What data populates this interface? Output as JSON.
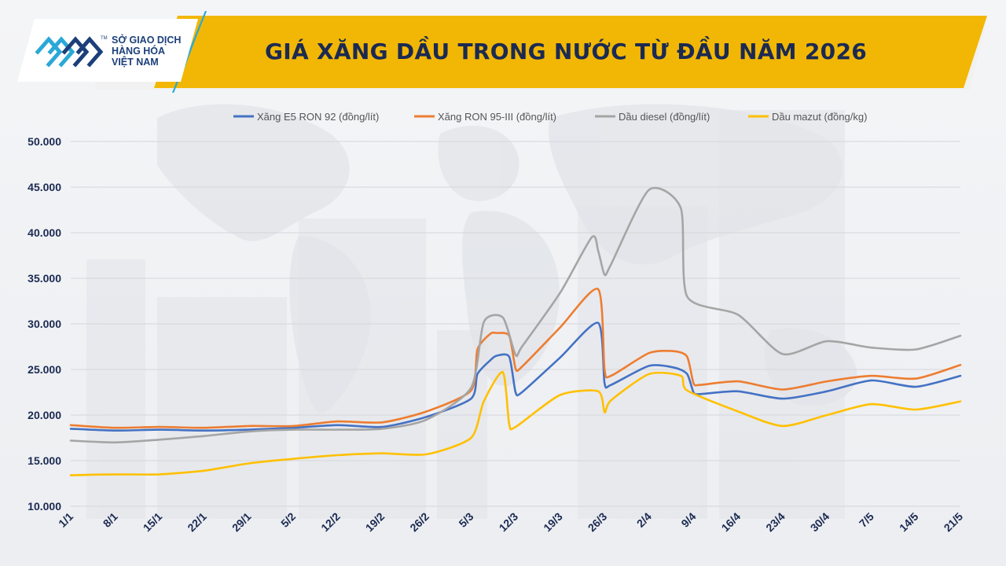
{
  "logo": {
    "line1": "SỞ GIAO DỊCH",
    "line2": "HÀNG HÓA",
    "line3": "VIỆT NAM",
    "tm": "TM"
  },
  "colors": {
    "banner": "#f2b705",
    "title": "#1b2a52",
    "axis_text": "#1b2a52",
    "logo_blue": "#1c3f7a",
    "logo_cyan": "#2aa8d8"
  },
  "chart_data": {
    "type": "line",
    "title": "GIÁ XĂNG DẦU TRONG NƯỚC TỪ ĐẦU NĂM 2026",
    "xlabel": "",
    "ylabel": "",
    "ylim": [
      10000,
      50000
    ],
    "yticks": [
      10000,
      15000,
      20000,
      25000,
      30000,
      35000,
      40000,
      45000,
      50000
    ],
    "ytick_labels": [
      "10.000",
      "15.000",
      "20.000",
      "25.000",
      "30.000",
      "35.000",
      "40.000",
      "45.000",
      "50.000"
    ],
    "x_day_range": [
      1,
      141
    ],
    "xticks": [
      1,
      8,
      15,
      22,
      29,
      36,
      43,
      50,
      57,
      64,
      71,
      78,
      85,
      92,
      99,
      106,
      113,
      120,
      127,
      134,
      141
    ],
    "xtick_labels": [
      "1/1",
      "8/1",
      "15/1",
      "22/1",
      "29/1",
      "5/2",
      "12/2",
      "19/2",
      "26/2",
      "5/3",
      "12/3",
      "19/3",
      "26/3",
      "2/4",
      "9/4",
      "16/4",
      "23/4",
      "30/4",
      "7/5",
      "14/5",
      "21/5"
    ],
    "grid": true,
    "legend": "top-center",
    "series": [
      {
        "name": "Xăng E5 RON 92 (đồng/lít)",
        "color": "#4472c4",
        "x": [
          1,
          8,
          15,
          22,
          29,
          36,
          43,
          50,
          57,
          64,
          65,
          67,
          68,
          70,
          71,
          72,
          78,
          84,
          85,
          86,
          92,
          96,
          98,
          99,
          100,
          106,
          113,
          120,
          127,
          134,
          141
        ],
        "y": [
          18500,
          18300,
          18400,
          18300,
          18400,
          18600,
          18900,
          18700,
          19800,
          21800,
          24500,
          26000,
          26500,
          26400,
          22500,
          22500,
          26300,
          30100,
          23500,
          23300,
          25400,
          25200,
          24500,
          22500,
          22300,
          22600,
          21800,
          22600,
          23800,
          23100,
          24300
        ]
      },
      {
        "name": "Xăng RON 95-III (đồng/lít)",
        "color": "#ed7d31",
        "x": [
          1,
          8,
          15,
          22,
          29,
          36,
          43,
          50,
          57,
          64,
          65,
          67,
          68,
          70,
          71,
          72,
          78,
          84,
          85,
          86,
          92,
          96,
          98,
          99,
          100,
          106,
          113,
          120,
          127,
          134,
          141
        ],
        "y": [
          18900,
          18600,
          18700,
          18600,
          18800,
          18800,
          19300,
          19200,
          20400,
          22700,
          27200,
          28900,
          29000,
          28700,
          25100,
          25300,
          29600,
          33800,
          25000,
          24300,
          26800,
          27000,
          26400,
          23500,
          23300,
          23700,
          22800,
          23700,
          24300,
          24000,
          25500
        ]
      },
      {
        "name": "Dầu diesel (đồng/lít)",
        "color": "#a5a5a5",
        "x": [
          1,
          8,
          15,
          22,
          29,
          36,
          43,
          50,
          57,
          64,
          66,
          69,
          71,
          72,
          78,
          83,
          84,
          85,
          86,
          92,
          97,
          98,
          106,
          113,
          120,
          127,
          134,
          141
        ],
        "y": [
          17200,
          17000,
          17300,
          17700,
          18200,
          18400,
          18400,
          18500,
          19500,
          23000,
          30200,
          30700,
          26600,
          27500,
          33400,
          39500,
          38000,
          35400,
          36500,
          44700,
          42700,
          33000,
          31000,
          26700,
          28100,
          27400,
          27200,
          28700
        ]
      },
      {
        "name": "Dầu mazut (đồng/kg)",
        "color": "#ffc000",
        "x": [
          1,
          8,
          15,
          22,
          29,
          36,
          43,
          50,
          57,
          64,
          66,
          69,
          70,
          71,
          78,
          84,
          85,
          86,
          92,
          97,
          98,
          106,
          113,
          120,
          127,
          134,
          141
        ],
        "y": [
          13400,
          13500,
          13500,
          13900,
          14700,
          15200,
          15600,
          15800,
          15700,
          17500,
          21500,
          24700,
          19000,
          18700,
          22200,
          22600,
          20300,
          21600,
          24500,
          24300,
          22700,
          20400,
          18800,
          20000,
          21200,
          20600,
          21500
        ]
      }
    ]
  }
}
